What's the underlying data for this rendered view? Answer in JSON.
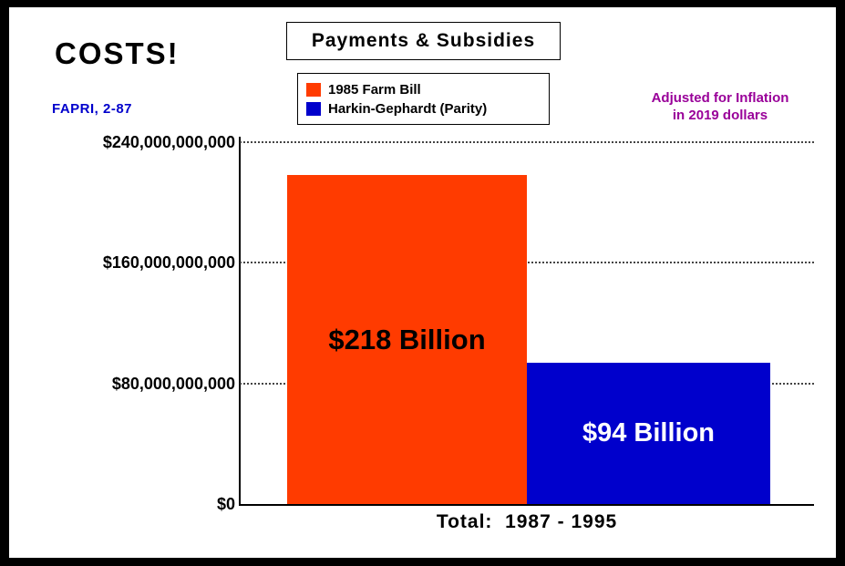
{
  "header": {
    "title": "Payments & Subsidies",
    "costs_label": "COSTS!",
    "source_label": "FAPRI, 2-87",
    "inflation_note_line1": "Adjusted for Inflation",
    "inflation_note_line2": "in 2019 dollars"
  },
  "legend": {
    "items": [
      {
        "label": "1985 Farm Bill",
        "color": "#ff3b00"
      },
      {
        "label": "Harkin-Gephardt (Parity)",
        "color": "#0000cc"
      }
    ]
  },
  "chart_data": {
    "type": "bar",
    "title": "Payments & Subsidies",
    "categories": [
      "1985 Farm Bill",
      "Harkin-Gephardt (Parity)"
    ],
    "values": [
      218000000000,
      94000000000
    ],
    "bar_labels": [
      "$218 Billion",
      "$94 Billion"
    ],
    "bar_colors": [
      "#ff3b00",
      "#0000cc"
    ],
    "bar_label_colors": [
      "#000000",
      "#ffffff"
    ],
    "ylim": [
      0,
      240000000000
    ],
    "ytick_values": [
      240000000000,
      160000000000,
      80000000000,
      0
    ],
    "ytick_labels": [
      "$240,000,000,000",
      "$160,000,000,000",
      "$80,000,000,000",
      "$0"
    ],
    "xlabel": "Total:  1987 - 1995",
    "grid": "dotted-horizontal",
    "legend_position": "top",
    "annotation": "Adjusted for Inflation in 2019 dollars",
    "source": "FAPRI, 2-87"
  },
  "footer": {
    "xlabel": "Total:  1987 - 1995"
  }
}
